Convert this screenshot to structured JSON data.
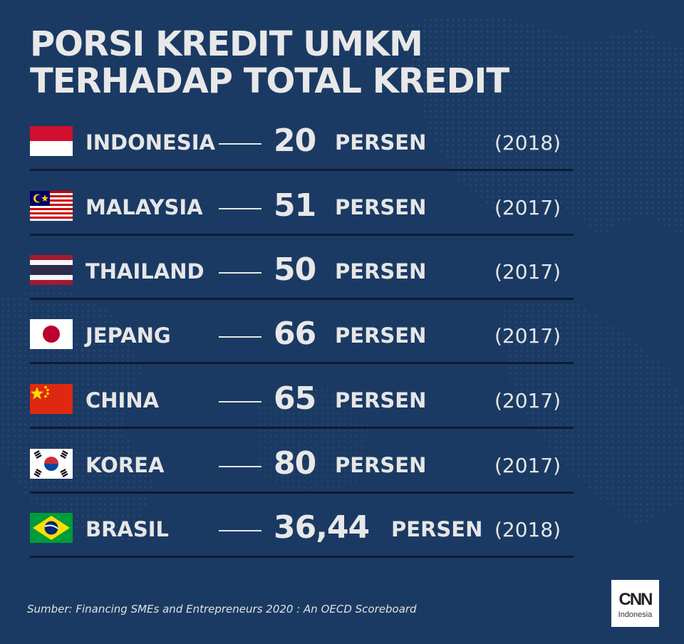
{
  "title_lines": [
    "PORSI KREDIT UMKM",
    "TERHADAP TOTAL KREDIT"
  ],
  "chart_data": {
    "type": "table",
    "columns": [
      "country",
      "value",
      "unit",
      "year"
    ],
    "rows": [
      {
        "country": "INDONESIA",
        "flag": "indonesia-flag",
        "value": "20",
        "unit": "PERSEN",
        "year": "(2018)"
      },
      {
        "country": "MALAYSIA",
        "flag": "malaysia-flag",
        "value": "51",
        "unit": "PERSEN",
        "year": "(2017)"
      },
      {
        "country": "THAILAND",
        "flag": "thailand-flag",
        "value": "50",
        "unit": "PERSEN",
        "year": "(2017)"
      },
      {
        "country": "JEPANG",
        "flag": "japan-flag",
        "value": "66",
        "unit": "PERSEN",
        "year": "(2017)"
      },
      {
        "country": "CHINA",
        "flag": "china-flag",
        "value": "65",
        "unit": "PERSEN",
        "year": "(2017)"
      },
      {
        "country": "KOREA",
        "flag": "korea-flag",
        "value": "80",
        "unit": "PERSEN",
        "year": "(2017)"
      },
      {
        "country": "BRASIL",
        "flag": "brazil-flag",
        "value": "36,44",
        "unit": "PERSEN",
        "year": "(2018)"
      }
    ]
  },
  "source": "Sumber: Financing SMEs and Entrepreneurs 2020 : An OECD Scoreboard",
  "logo": {
    "mark": "CNN",
    "sub": "Indonesia"
  },
  "colors": {
    "background": "#1b3a63",
    "text": "#e6e6e6",
    "separator": "#0c1c30"
  }
}
